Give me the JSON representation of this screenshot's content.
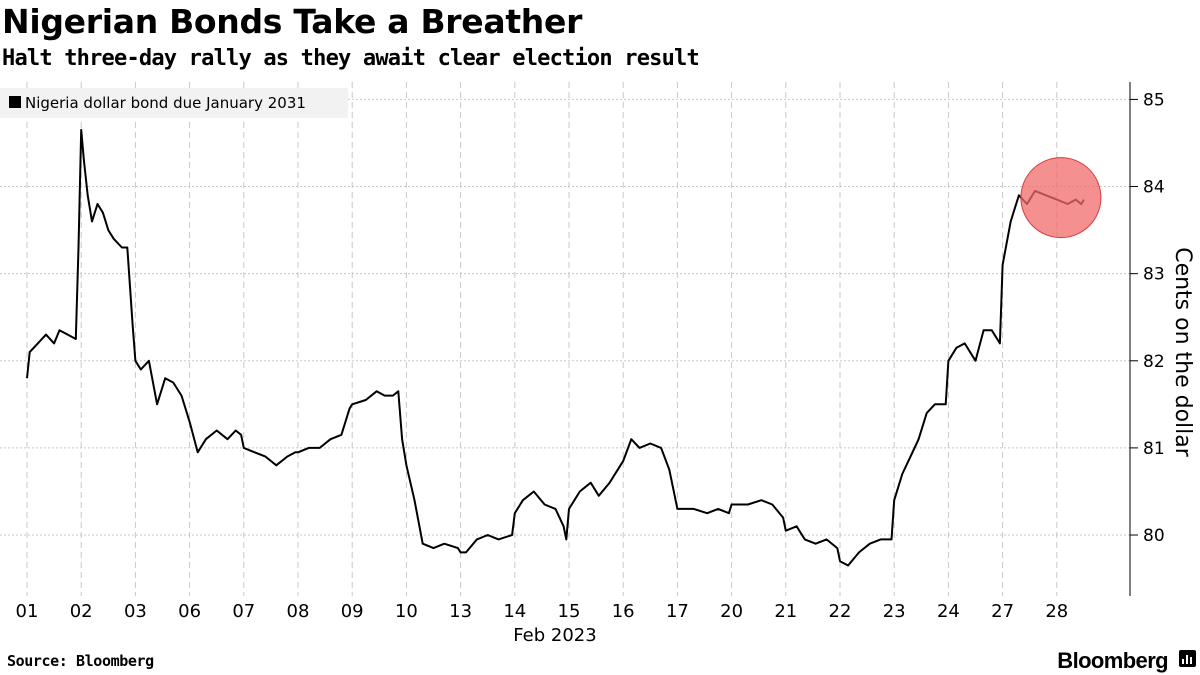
{
  "header": {
    "title": "Nigerian Bonds Take a Breather",
    "subtitle": "Halt three-day rally as they await clear election result"
  },
  "footer": {
    "source": "Source: Bloomberg",
    "brand": "Bloomberg"
  },
  "colors": {
    "line": "#000000",
    "grid": "#c8c8c8",
    "highlight_fill": "#f26b6b",
    "highlight_stroke": "#d83a3a",
    "legend_bg": "#f2f2f2"
  },
  "chart_data": {
    "type": "line",
    "title": "Nigerian Bonds Take a Breather",
    "subtitle": "Halt three-day rally as they await clear election result",
    "ylabel": "Cents on the dollar",
    "xlabel": "Feb 2023",
    "ylim": [
      79.3,
      85.2
    ],
    "yticks": [
      80,
      81,
      82,
      83,
      84,
      85
    ],
    "yaxis_side": "right",
    "grid": "dashed",
    "legend_position": "top-left",
    "annotation": "red circle around last points",
    "categories": [
      "01",
      "02",
      "03",
      "06",
      "07",
      "08",
      "09",
      "10",
      "13",
      "14",
      "15",
      "16",
      "17",
      "20",
      "21",
      "22",
      "23",
      "24",
      "27",
      "28"
    ],
    "series": [
      {
        "name": "Nigeria dollar bond due January 2031",
        "points": [
          [
            0.0,
            81.8
          ],
          [
            0.05,
            82.1
          ],
          [
            0.2,
            82.2
          ],
          [
            0.35,
            82.3
          ],
          [
            0.5,
            82.2
          ],
          [
            0.6,
            82.35
          ],
          [
            0.75,
            82.3
          ],
          [
            0.9,
            82.25
          ],
          [
            0.95,
            83.3
          ],
          [
            1.0,
            84.65
          ],
          [
            1.05,
            84.3
          ],
          [
            1.12,
            83.9
          ],
          [
            1.2,
            83.6
          ],
          [
            1.3,
            83.8
          ],
          [
            1.4,
            83.7
          ],
          [
            1.5,
            83.5
          ],
          [
            1.6,
            83.4
          ],
          [
            1.75,
            83.3
          ],
          [
            1.85,
            83.3
          ],
          [
            1.95,
            82.4
          ],
          [
            2.0,
            82.0
          ],
          [
            2.1,
            81.9
          ],
          [
            2.25,
            82.0
          ],
          [
            2.4,
            81.5
          ],
          [
            2.55,
            81.8
          ],
          [
            2.7,
            81.75
          ],
          [
            2.85,
            81.6
          ],
          [
            3.0,
            81.3
          ],
          [
            3.15,
            80.95
          ],
          [
            3.3,
            81.1
          ],
          [
            3.5,
            81.2
          ],
          [
            3.7,
            81.1
          ],
          [
            3.85,
            81.2
          ],
          [
            3.95,
            81.15
          ],
          [
            4.0,
            81.0
          ],
          [
            4.2,
            80.95
          ],
          [
            4.4,
            80.9
          ],
          [
            4.6,
            80.8
          ],
          [
            4.8,
            80.9
          ],
          [
            4.95,
            80.95
          ],
          [
            5.0,
            80.95
          ],
          [
            5.2,
            81.0
          ],
          [
            5.4,
            81.0
          ],
          [
            5.6,
            81.1
          ],
          [
            5.8,
            81.15
          ],
          [
            5.95,
            81.45
          ],
          [
            6.0,
            81.5
          ],
          [
            6.25,
            81.55
          ],
          [
            6.45,
            81.65
          ],
          [
            6.6,
            81.6
          ],
          [
            6.75,
            81.6
          ],
          [
            6.85,
            81.65
          ],
          [
            6.92,
            81.1
          ],
          [
            7.0,
            80.8
          ],
          [
            7.15,
            80.4
          ],
          [
            7.3,
            79.9
          ],
          [
            7.5,
            79.85
          ],
          [
            7.7,
            79.9
          ],
          [
            7.95,
            79.85
          ],
          [
            8.0,
            79.8
          ],
          [
            8.1,
            79.8
          ],
          [
            8.3,
            79.95
          ],
          [
            8.5,
            80.0
          ],
          [
            8.7,
            79.95
          ],
          [
            8.95,
            80.0
          ],
          [
            9.0,
            80.25
          ],
          [
            9.15,
            80.4
          ],
          [
            9.35,
            80.5
          ],
          [
            9.55,
            80.35
          ],
          [
            9.75,
            80.3
          ],
          [
            9.9,
            80.1
          ],
          [
            9.95,
            79.95
          ],
          [
            10.0,
            80.3
          ],
          [
            10.2,
            80.5
          ],
          [
            10.4,
            80.6
          ],
          [
            10.55,
            80.45
          ],
          [
            10.75,
            80.6
          ],
          [
            10.95,
            80.8
          ],
          [
            11.0,
            80.85
          ],
          [
            11.15,
            81.1
          ],
          [
            11.3,
            81.0
          ],
          [
            11.5,
            81.05
          ],
          [
            11.7,
            81.0
          ],
          [
            11.85,
            80.75
          ],
          [
            11.95,
            80.45
          ],
          [
            12.0,
            80.3
          ],
          [
            12.3,
            80.3
          ],
          [
            12.55,
            80.25
          ],
          [
            12.75,
            80.3
          ],
          [
            12.95,
            80.25
          ],
          [
            13.0,
            80.35
          ],
          [
            13.3,
            80.35
          ],
          [
            13.55,
            80.4
          ],
          [
            13.75,
            80.35
          ],
          [
            13.95,
            80.2
          ],
          [
            14.0,
            80.05
          ],
          [
            14.2,
            80.1
          ],
          [
            14.35,
            79.95
          ],
          [
            14.55,
            79.9
          ],
          [
            14.75,
            79.95
          ],
          [
            14.95,
            79.85
          ],
          [
            15.0,
            79.7
          ],
          [
            15.15,
            79.65
          ],
          [
            15.35,
            79.8
          ],
          [
            15.55,
            79.9
          ],
          [
            15.75,
            79.95
          ],
          [
            15.95,
            79.95
          ],
          [
            16.0,
            80.4
          ],
          [
            16.15,
            80.7
          ],
          [
            16.3,
            80.9
          ],
          [
            16.45,
            81.1
          ],
          [
            16.6,
            81.4
          ],
          [
            16.75,
            81.5
          ],
          [
            16.95,
            81.5
          ],
          [
            17.0,
            82.0
          ],
          [
            17.15,
            82.15
          ],
          [
            17.3,
            82.2
          ],
          [
            17.5,
            82.0
          ],
          [
            17.65,
            82.35
          ],
          [
            17.8,
            82.35
          ],
          [
            17.95,
            82.2
          ],
          [
            18.0,
            83.1
          ],
          [
            18.15,
            83.6
          ],
          [
            18.3,
            83.9
          ],
          [
            18.45,
            83.8
          ],
          [
            18.6,
            83.95
          ],
          [
            18.8,
            83.9
          ],
          [
            19.0,
            83.85
          ],
          [
            19.2,
            83.8
          ],
          [
            19.35,
            83.85
          ],
          [
            19.45,
            83.8
          ],
          [
            19.5,
            83.85
          ]
        ]
      }
    ]
  }
}
